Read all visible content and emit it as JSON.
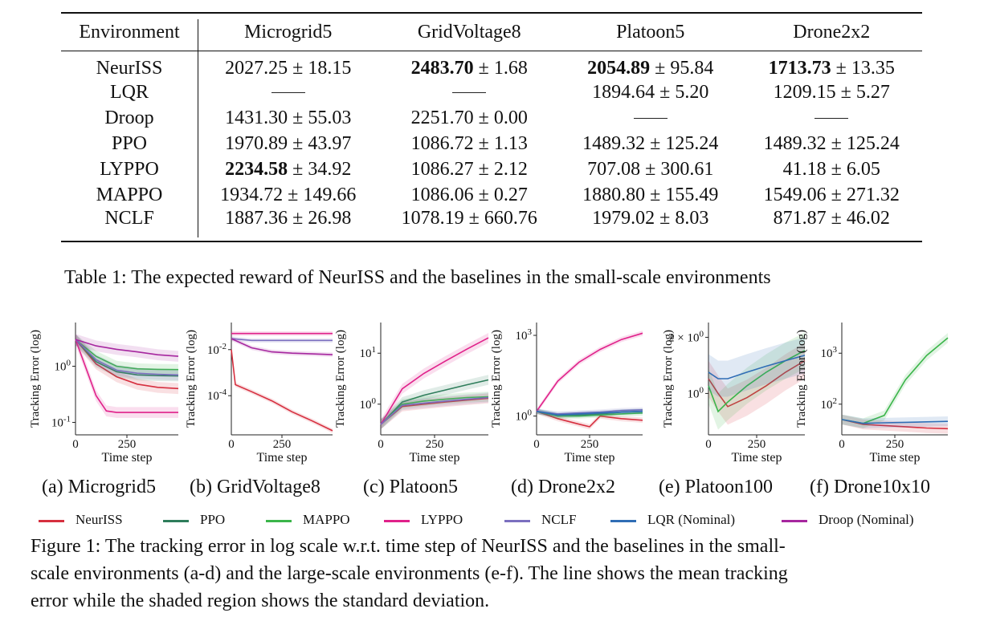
{
  "table": {
    "headers": [
      "Environment",
      "Microgrid5",
      "GridVoltage8",
      "Platoon5",
      "Drone2x2"
    ],
    "rows": [
      {
        "env": "NeurISS",
        "cells": [
          {
            "main": "2027.25",
            "pm": "18.15"
          },
          {
            "main": "2483.70",
            "pm": "1.68",
            "bold": true
          },
          {
            "main": "2054.89",
            "pm": "95.84",
            "bold": true
          },
          {
            "main": "1713.73",
            "pm": "13.35",
            "bold": true
          }
        ]
      },
      {
        "env": "LQR",
        "cells": [
          {
            "dash": true
          },
          {
            "dash": true
          },
          {
            "main": "1894.64",
            "pm": "5.20"
          },
          {
            "main": "1209.15",
            "pm": "5.27"
          }
        ]
      },
      {
        "env": "Droop",
        "cells": [
          {
            "main": "1431.30",
            "pm": "55.03"
          },
          {
            "main": "2251.70",
            "pm": "0.00"
          },
          {
            "dash": true
          },
          {
            "dash": true
          }
        ]
      },
      {
        "env": "PPO",
        "cells": [
          {
            "main": "1970.89",
            "pm": "43.97"
          },
          {
            "main": "1086.72",
            "pm": "1.13"
          },
          {
            "main": "1489.32",
            "pm": "125.24"
          },
          {
            "main": "1489.32",
            "pm": "125.24"
          }
        ]
      },
      {
        "env": "LYPPO",
        "cells": [
          {
            "main": "2234.58",
            "pm": "34.92",
            "bold": true
          },
          {
            "main": "1086.27",
            "pm": "2.12"
          },
          {
            "main": "707.08",
            "pm": "300.61"
          },
          {
            "main": "41.18",
            "pm": "6.05"
          }
        ]
      },
      {
        "env": "MAPPO",
        "cells": [
          {
            "main": "1934.72",
            "pm": "149.66"
          },
          {
            "main": "1086.06",
            "pm": "0.27"
          },
          {
            "main": "1880.80",
            "pm": "155.49"
          },
          {
            "main": "1549.06",
            "pm": "271.32"
          }
        ]
      },
      {
        "env": "NCLF",
        "cells": [
          {
            "main": "1887.36",
            "pm": "26.98"
          },
          {
            "main": "1078.19",
            "pm": "660.76"
          },
          {
            "main": "1979.02",
            "pm": "8.03"
          },
          {
            "main": "871.87",
            "pm": "46.02"
          }
        ]
      }
    ],
    "caption": "Table 1: The expected reward of NeurISS and the baselines in the small-scale environments"
  },
  "figure": {
    "ylabel": "Tracking Error (log)",
    "xlabel": "Time step",
    "xtick": "250",
    "xtick0": "0",
    "subcaptions": [
      "(a) Microgrid5",
      "(b) GridVoltage8",
      "(c) Platoon5",
      "(d) Drone2x2",
      "(e) Platoon100",
      "(f) Drone10x10"
    ],
    "caption_line1": "Figure 1: The tracking error in log scale w.r.t. time step of NeurISS and the baselines in the small-",
    "caption_line2": "scale environments (a-d) and the large-scale environments (e-f). The line shows the mean tracking",
    "caption_line3": "error while the shaded region shows the standard deviation.",
    "legend": [
      {
        "name": "NeurISS",
        "color": "#d62f3f"
      },
      {
        "name": "PPO",
        "color": "#2e7d5b"
      },
      {
        "name": "MAPPO",
        "color": "#3bb54a"
      },
      {
        "name": "LYPPO",
        "color": "#e0218a"
      },
      {
        "name": "NCLF",
        "color": "#7b6fbf"
      },
      {
        "name": "LQR (Nominal)",
        "color": "#2f6db5"
      },
      {
        "name": "Droop (Nominal)",
        "color": "#a6279f"
      }
    ],
    "ytick_labels": {
      "a": [
        "10^0",
        "10^-1"
      ],
      "b": [
        "10^-2",
        "10^-4"
      ],
      "c": [
        "10^1",
        "10^0"
      ],
      "d": [
        "10^3",
        "10^0"
      ],
      "e": [
        "2 × 10^0",
        "10^0"
      ],
      "f": [
        "10^3",
        "10^2"
      ]
    }
  },
  "chart_data": [
    {
      "type": "line",
      "title": "(a) Microgrid5",
      "xlabel": "Time step",
      "ylabel": "Tracking Error (log)",
      "yscale": "log",
      "xlim": [
        0,
        500
      ],
      "series": [
        {
          "name": "NeurISS",
          "x": [
            0,
            100,
            200,
            300,
            400,
            500
          ],
          "y": [
            3.0,
            1.1,
            0.65,
            0.48,
            0.42,
            0.4
          ]
        },
        {
          "name": "PPO",
          "x": [
            0,
            100,
            200,
            300,
            400,
            500
          ],
          "y": [
            3.0,
            1.2,
            0.8,
            0.7,
            0.68,
            0.67
          ]
        },
        {
          "name": "MAPPO",
          "x": [
            0,
            100,
            200,
            300,
            400,
            500
          ],
          "y": [
            3.0,
            1.5,
            1.0,
            0.9,
            0.88,
            0.87
          ]
        },
        {
          "name": "LYPPO",
          "x": [
            0,
            100,
            150,
            200,
            300,
            500
          ],
          "y": [
            3.0,
            0.3,
            0.16,
            0.15,
            0.15,
            0.15
          ]
        },
        {
          "name": "NCLF",
          "x": [
            0,
            100,
            200,
            300,
            400,
            500
          ],
          "y": [
            3.0,
            1.3,
            0.85,
            0.75,
            0.72,
            0.7
          ]
        },
        {
          "name": "Droop (Nominal)",
          "x": [
            0,
            100,
            200,
            300,
            400,
            500
          ],
          "y": [
            3.0,
            2.3,
            2.0,
            1.8,
            1.6,
            1.5
          ]
        }
      ]
    },
    {
      "type": "line",
      "title": "(b) GridVoltage8",
      "xlabel": "Time step",
      "ylabel": "Tracking Error (log)",
      "yscale": "log",
      "xlim": [
        0,
        500
      ],
      "series": [
        {
          "name": "NeurISS",
          "x": [
            0,
            20,
            100,
            200,
            300,
            400,
            500
          ],
          "y": [
            0.01,
            0.0003,
            0.00015,
            6e-05,
            2e-05,
            8e-06,
            3e-06
          ]
        },
        {
          "name": "NCLF",
          "x": [
            0,
            100,
            200,
            300,
            400,
            500
          ],
          "y": [
            0.03,
            0.025,
            0.025,
            0.025,
            0.025,
            0.025
          ]
        },
        {
          "name": "LYPPO",
          "x": [
            0,
            100,
            200,
            300,
            400,
            500
          ],
          "y": [
            0.05,
            0.05,
            0.05,
            0.05,
            0.05,
            0.05
          ]
        },
        {
          "name": "Droop (Nominal)",
          "x": [
            0,
            100,
            200,
            300,
            400,
            500
          ],
          "y": [
            0.03,
            0.012,
            0.008,
            0.007,
            0.0065,
            0.006
          ]
        }
      ]
    },
    {
      "type": "line",
      "title": "(c) Platoon5",
      "xlabel": "Time step",
      "ylabel": "Tracking Error (log)",
      "yscale": "log",
      "xlim": [
        0,
        500
      ],
      "series": [
        {
          "name": "NeurISS",
          "x": [
            0,
            100,
            200,
            300,
            400,
            500
          ],
          "y": [
            0.4,
            0.9,
            1.0,
            1.1,
            1.2,
            1.3
          ]
        },
        {
          "name": "PPO",
          "x": [
            0,
            100,
            200,
            300,
            400,
            500
          ],
          "y": [
            0.4,
            1.1,
            1.5,
            1.9,
            2.4,
            3.0
          ]
        },
        {
          "name": "MAPPO",
          "x": [
            0,
            100,
            200,
            300,
            400,
            500
          ],
          "y": [
            0.4,
            1.0,
            1.15,
            1.25,
            1.35,
            1.4
          ]
        },
        {
          "name": "LYPPO",
          "x": [
            0,
            100,
            200,
            300,
            400,
            500
          ],
          "y": [
            0.4,
            2.0,
            4.0,
            7.0,
            12.0,
            20.0
          ]
        },
        {
          "name": "NCLF",
          "x": [
            0,
            100,
            200,
            300,
            400,
            500
          ],
          "y": [
            0.4,
            0.95,
            1.05,
            1.15,
            1.25,
            1.35
          ]
        }
      ]
    },
    {
      "type": "line",
      "title": "(d) Drone2x2",
      "xlabel": "Time step",
      "ylabel": "Tracking Error (log)",
      "yscale": "log",
      "xlim": [
        0,
        500
      ],
      "series": [
        {
          "name": "NeurISS",
          "x": [
            0,
            100,
            200,
            250,
            300,
            400,
            500
          ],
          "y": [
            1.5,
            0.8,
            0.5,
            0.4,
            1.0,
            0.8,
            0.7
          ]
        },
        {
          "name": "PPO",
          "x": [
            0,
            100,
            200,
            300,
            400,
            500
          ],
          "y": [
            1.5,
            1.0,
            1.1,
            1.2,
            1.4,
            1.5
          ]
        },
        {
          "name": "MAPPO",
          "x": [
            0,
            100,
            200,
            300,
            400,
            500
          ],
          "y": [
            1.5,
            1.0,
            1.0,
            1.1,
            1.2,
            1.3
          ]
        },
        {
          "name": "LYPPO",
          "x": [
            0,
            100,
            200,
            300,
            400,
            500
          ],
          "y": [
            1.5,
            20,
            100,
            300,
            700,
            1200
          ]
        },
        {
          "name": "NCLF",
          "x": [
            0,
            100,
            200,
            300,
            400,
            500
          ],
          "y": [
            1.5,
            1.2,
            1.3,
            1.4,
            1.6,
            1.7
          ]
        },
        {
          "name": "LQR (Nominal)",
          "x": [
            0,
            100,
            200,
            300,
            400,
            500
          ],
          "y": [
            1.5,
            1.1,
            1.2,
            1.3,
            1.4,
            1.5
          ]
        }
      ]
    },
    {
      "type": "line",
      "title": "(e) Platoon100",
      "xlabel": "Time step",
      "ylabel": "Tracking Error (log)",
      "yscale": "log",
      "xlim": [
        0,
        500
      ],
      "series": [
        {
          "name": "NeurISS",
          "x": [
            0,
            50,
            100,
            200,
            300,
            400,
            500
          ],
          "y": [
            1.2,
            1.0,
            0.85,
            0.95,
            1.1,
            1.3,
            1.5
          ]
        },
        {
          "name": "MAPPO",
          "x": [
            0,
            50,
            100,
            200,
            300,
            400,
            500
          ],
          "y": [
            1.1,
            0.8,
            0.9,
            1.1,
            1.3,
            1.5,
            1.7
          ]
        },
        {
          "name": "LQR (Nominal)",
          "x": [
            0,
            50,
            100,
            200,
            300,
            400,
            500
          ],
          "y": [
            1.3,
            1.2,
            1.2,
            1.3,
            1.4,
            1.5,
            1.6
          ]
        }
      ]
    },
    {
      "type": "line",
      "title": "(f) Drone10x10",
      "xlabel": "Time step",
      "ylabel": "Tracking Error (log)",
      "yscale": "log",
      "xlim": [
        0,
        500
      ],
      "series": [
        {
          "name": "NeurISS",
          "x": [
            0,
            100,
            200,
            300,
            400,
            500
          ],
          "y": [
            50,
            40,
            38,
            36,
            34,
            33
          ]
        },
        {
          "name": "MAPPO",
          "x": [
            0,
            100,
            200,
            300,
            400,
            500
          ],
          "y": [
            50,
            42,
            60,
            300,
            900,
            2000
          ]
        },
        {
          "name": "LQR (Nominal)",
          "x": [
            0,
            100,
            200,
            300,
            400,
            500
          ],
          "y": [
            50,
            42,
            43,
            44,
            45,
            46
          ]
        }
      ]
    }
  ]
}
